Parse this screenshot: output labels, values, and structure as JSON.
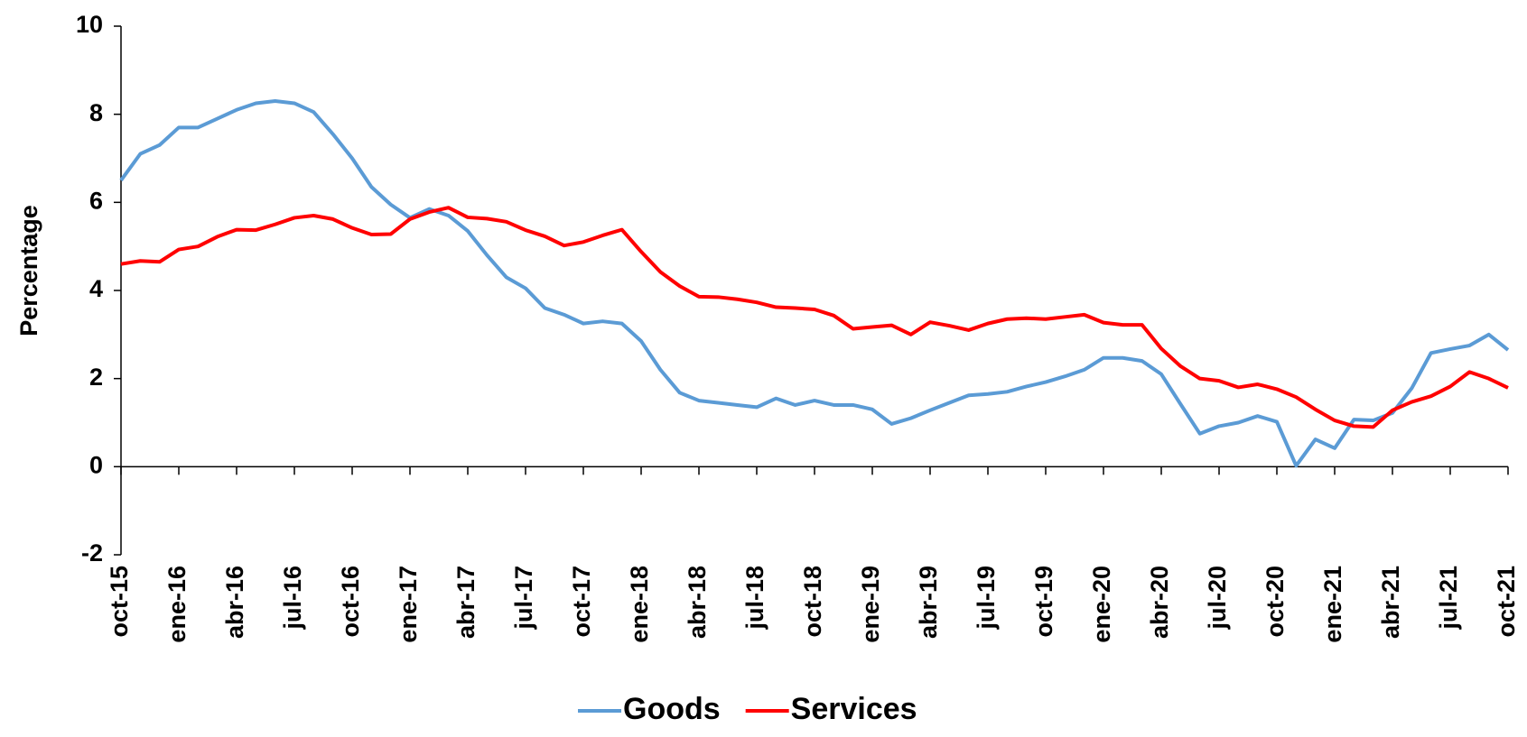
{
  "chart_data": {
    "type": "line",
    "y_label": "Percentage",
    "categories": [
      "oct-15",
      null,
      null,
      "ene-16",
      null,
      null,
      "abr-16",
      null,
      null,
      "jul-16",
      null,
      null,
      "oct-16",
      null,
      null,
      "ene-17",
      null,
      null,
      "abr-17",
      null,
      null,
      "jul-17",
      null,
      null,
      "oct-17",
      null,
      null,
      "ene-18",
      null,
      null,
      "abr-18",
      null,
      null,
      "jul-18",
      null,
      null,
      "oct-18",
      null,
      null,
      "ene-19",
      null,
      null,
      "abr-19",
      null,
      null,
      "jul-19",
      null,
      null,
      "oct-19",
      null,
      null,
      "ene-20",
      null,
      null,
      "abr-20",
      null,
      null,
      "jul-20",
      null,
      null,
      "oct-20",
      null,
      null,
      "ene-21",
      null,
      null,
      "abr-21",
      null,
      null,
      "jul-21",
      null,
      null,
      "oct-21"
    ],
    "series": [
      {
        "name": "Goods",
        "color": "#5b9bd5",
        "values": [
          6.5,
          7.1,
          7.3,
          7.7,
          7.7,
          7.9,
          8.1,
          8.25,
          8.3,
          8.25,
          8.05,
          7.55,
          7.0,
          6.35,
          5.95,
          5.65,
          5.85,
          5.7,
          5.35,
          4.8,
          4.3,
          4.05,
          3.6,
          3.45,
          3.25,
          3.3,
          3.25,
          2.85,
          2.2,
          1.68,
          1.5,
          1.45,
          1.4,
          1.35,
          1.55,
          1.4,
          1.5,
          1.4,
          1.4,
          1.3,
          0.97,
          1.1,
          1.28,
          1.45,
          1.62,
          1.65,
          1.7,
          1.82,
          1.92,
          2.05,
          2.2,
          2.47,
          2.47,
          2.4,
          2.1,
          1.42,
          0.75,
          0.92,
          1.0,
          1.15,
          1.02,
          0.02,
          0.62,
          0.42,
          1.07,
          1.05,
          1.22,
          1.78,
          2.58,
          2.67,
          2.75,
          3.0,
          2.65
        ]
      },
      {
        "name": "Services",
        "color": "#ff0000",
        "values": [
          4.6,
          4.67,
          4.65,
          4.93,
          5.0,
          5.22,
          5.38,
          5.37,
          5.5,
          5.65,
          5.7,
          5.62,
          5.42,
          5.27,
          5.28,
          5.62,
          5.78,
          5.88,
          5.66,
          5.63,
          5.56,
          5.37,
          5.23,
          5.02,
          5.1,
          5.25,
          5.38,
          4.88,
          4.42,
          4.1,
          3.86,
          3.85,
          3.8,
          3.73,
          3.62,
          3.6,
          3.57,
          3.43,
          3.13,
          3.17,
          3.21,
          3.0,
          3.28,
          3.2,
          3.1,
          3.25,
          3.35,
          3.37,
          3.35,
          3.4,
          3.45,
          3.27,
          3.22,
          3.22,
          2.68,
          2.28,
          2.0,
          1.95,
          1.8,
          1.87,
          1.76,
          1.58,
          1.3,
          1.05,
          0.92,
          0.9,
          1.28,
          1.47,
          1.6,
          1.82,
          2.15,
          2.0,
          1.79
        ]
      }
    ],
    "ylim": [
      -2,
      10
    ],
    "yticks": [
      -2,
      0,
      2,
      4,
      6,
      8,
      10
    ],
    "grid": false,
    "legend": "bottom"
  }
}
